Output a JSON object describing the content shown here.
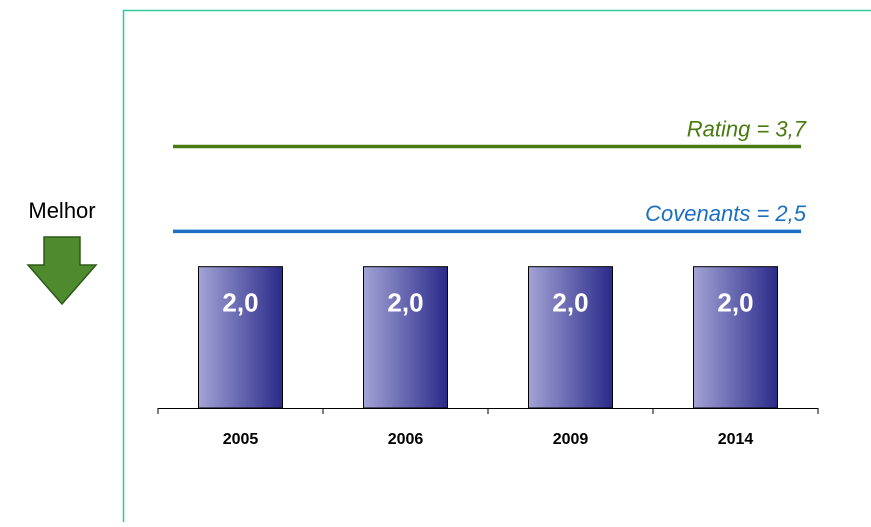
{
  "chart_data": {
    "type": "bar",
    "side_label": "Melhor",
    "categories": [
      "2005",
      "2006",
      "2009",
      "2014"
    ],
    "values": [
      2.0,
      2.0,
      2.0,
      2.0
    ],
    "value_labels": [
      "2,0",
      "2,0",
      "2,0",
      "2,0"
    ],
    "ylim": [
      0,
      4.5
    ],
    "reference_lines": [
      {
        "label": "Rating = 3,7",
        "value": 3.7,
        "color": "#4a7a12"
      },
      {
        "label": "Covenants = 2,5",
        "value": 2.5,
        "color": "#1b6fc2"
      }
    ]
  }
}
